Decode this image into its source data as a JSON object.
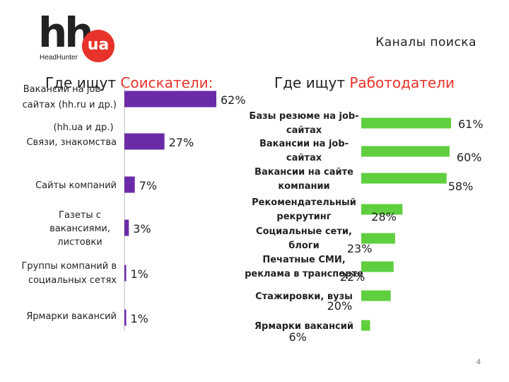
{
  "logo": {
    "main": "hh",
    "circle": "ua",
    "sub": "HeadHunter"
  },
  "slide_title": "Каналы поиска",
  "page_number": "4",
  "colors": {
    "accent": "#e8332a",
    "left_bar": "#6b2ba8",
    "right_bar": "#5fcf3f"
  },
  "chart_data": [
    {
      "type": "bar",
      "orientation": "horizontal",
      "title": "Где ищут Соискатели:",
      "title_plain": "Где ищут ",
      "title_accent": "Соискатели:",
      "categories": [
        [
          "Вакансии на job-",
          "сайтах (hh.ru и др.)",
          "(hh.ua и др.)"
        ],
        [
          "Связи, знакомства"
        ],
        [
          "Сайты компаний"
        ],
        [
          "Газеты с",
          "вакансиями,",
          "листовки"
        ],
        [
          "Группы компаний в",
          "социальных сетях"
        ],
        [
          "Ярмарки вакансий"
        ]
      ],
      "values": [
        62,
        27,
        7,
        3,
        1,
        1
      ],
      "labels": [
        "62%",
        "27%",
        "7%",
        "3%",
        "1%",
        "1%"
      ],
      "color": "#6b2ba8"
    },
    {
      "type": "bar",
      "orientation": "horizontal",
      "title": "Где ищут Работодатели",
      "title_plain": "Где ищут ",
      "title_accent": "Работодатели",
      "categories": [
        [
          "Базы резюме на job-",
          "сайтах"
        ],
        [
          "Вакансии на job-",
          "сайтах"
        ],
        [
          "Вакансии на сайте",
          "компании"
        ],
        [
          "Рекомендательный",
          "рекрутинг"
        ],
        [
          "Социальные сети,",
          "блоги"
        ],
        [
          "Печатные СМИ,",
          "реклама в транспорте"
        ],
        [
          "Стажировки, вузы"
        ],
        [
          "Ярмарки вакансий"
        ]
      ],
      "values": [
        61,
        60,
        58,
        28,
        23,
        22,
        20,
        6
      ],
      "labels": [
        "61%",
        "60%",
        "58%",
        "28%",
        "23%",
        "22%",
        "20%",
        "6%"
      ],
      "color": "#5fcf3f"
    }
  ]
}
